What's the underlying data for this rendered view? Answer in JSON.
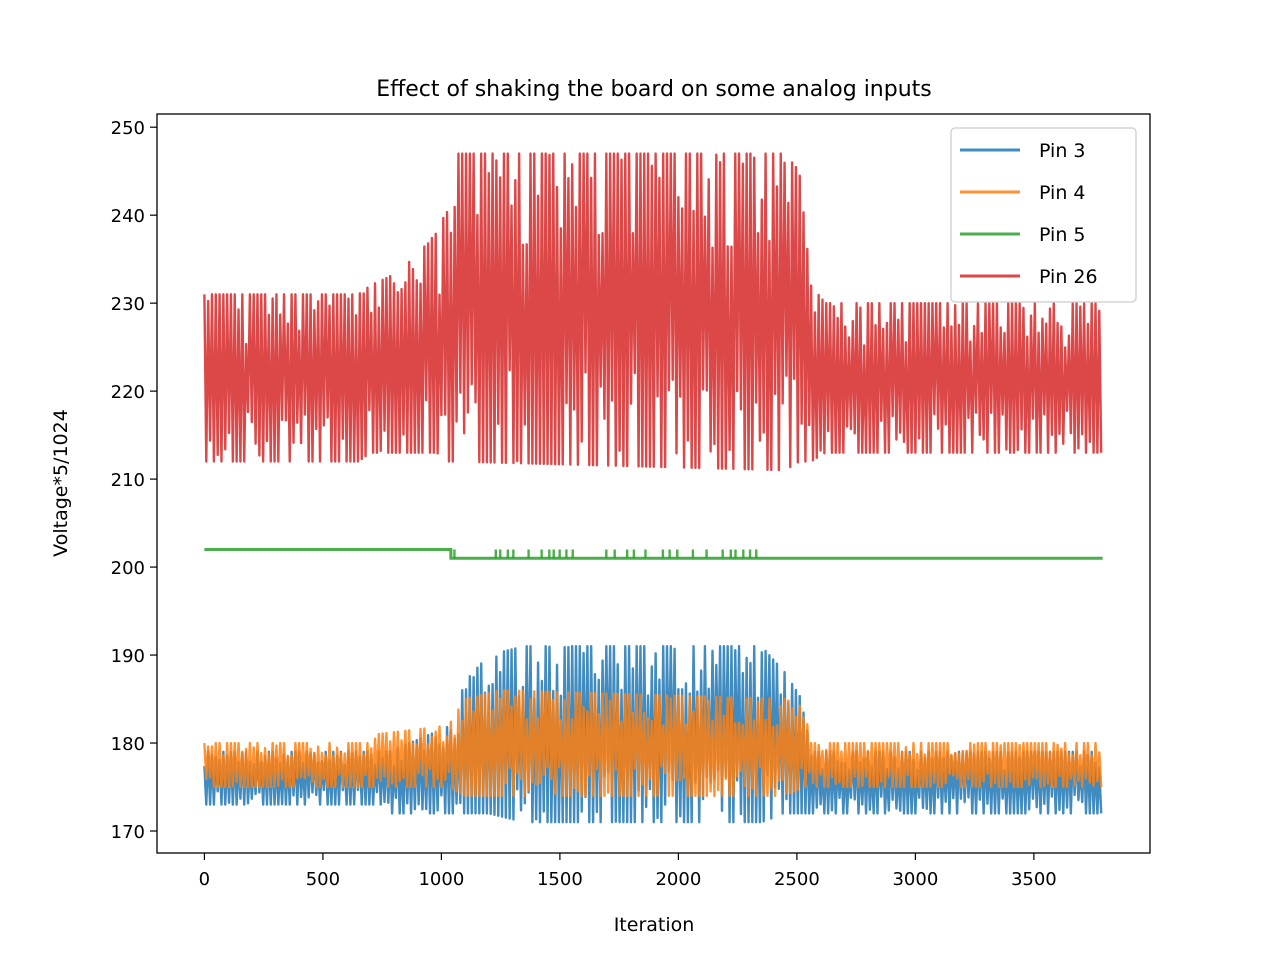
{
  "chart_data": {
    "type": "line",
    "title": "Effect of shaking the board on some analog inputs",
    "xlabel": "Iteration",
    "ylabel": "Voltage*5/1024",
    "xlim": [
      -200,
      3990
    ],
    "ylim": [
      167.5,
      251.5
    ],
    "x_ticks": [
      0,
      500,
      1000,
      1500,
      2000,
      2500,
      3000,
      3500
    ],
    "y_ticks": [
      170,
      180,
      190,
      200,
      210,
      220,
      230,
      240,
      250
    ],
    "x_tick_labels": [
      "0",
      "500",
      "1000",
      "1500",
      "2000",
      "2500",
      "3000",
      "3500"
    ],
    "y_tick_labels": [
      "170",
      "180",
      "190",
      "200",
      "210",
      "220",
      "230",
      "240",
      "250"
    ],
    "grid": false,
    "legend_position": "top-right",
    "series": [
      {
        "name": "Pin 3",
        "color": "#1f77b4",
        "description": "oscillating band; about 173-179 at rest, widening to about 171-191 while shaken",
        "envelope": [
          {
            "x": 0,
            "low": 173,
            "high": 179
          },
          {
            "x": 750,
            "low": 173,
            "high": 179
          },
          {
            "x": 780,
            "low": 172,
            "high": 179
          },
          {
            "x": 1040,
            "low": 172,
            "high": 182
          },
          {
            "x": 1100,
            "low": 172,
            "high": 187
          },
          {
            "x": 1200,
            "low": 172,
            "high": 190
          },
          {
            "x": 1350,
            "low": 171,
            "high": 191
          },
          {
            "x": 2350,
            "low": 171,
            "high": 191
          },
          {
            "x": 2450,
            "low": 172,
            "high": 188
          },
          {
            "x": 2520,
            "low": 172,
            "high": 185
          },
          {
            "x": 2560,
            "low": 172,
            "high": 179
          },
          {
            "x": 3790,
            "low": 172,
            "high": 179
          }
        ]
      },
      {
        "name": "Pin 4",
        "color": "#ff7f0e",
        "description": "oscillating band; about 175-180 at rest, rising to about 174-186 while shaken",
        "envelope": [
          {
            "x": 0,
            "low": 175,
            "high": 180
          },
          {
            "x": 700,
            "low": 175,
            "high": 180
          },
          {
            "x": 730,
            "low": 175,
            "high": 181
          },
          {
            "x": 1030,
            "low": 175,
            "high": 182
          },
          {
            "x": 1100,
            "low": 174,
            "high": 185
          },
          {
            "x": 1250,
            "low": 174,
            "high": 186
          },
          {
            "x": 2450,
            "low": 174,
            "high": 185
          },
          {
            "x": 2530,
            "low": 175,
            "high": 184
          },
          {
            "x": 2560,
            "low": 175,
            "high": 180
          },
          {
            "x": 3790,
            "low": 175,
            "high": 180
          }
        ]
      },
      {
        "name": "Pin 5",
        "color": "#2ca02c",
        "description": "near constant; 202 before shaking, 201 afterwards with brief flickers back to 202",
        "points": [
          {
            "x": 0,
            "y": 202
          },
          {
            "x": 1040,
            "y": 202
          },
          {
            "x": 1040,
            "y": 201
          },
          {
            "x": 3790,
            "y": 201
          }
        ],
        "flicker_value": 202,
        "flicker_range": [
          1040,
          2330
        ]
      },
      {
        "name": "Pin 26",
        "color": "#d62728",
        "description": "oscillating band; about 212-231 at rest, rising to about 211-247 while shaken",
        "envelope": [
          {
            "x": 0,
            "low": 212,
            "high": 231
          },
          {
            "x": 650,
            "low": 212,
            "high": 231
          },
          {
            "x": 700,
            "low": 213,
            "high": 232
          },
          {
            "x": 780,
            "low": 213,
            "high": 233
          },
          {
            "x": 880,
            "low": 213,
            "high": 235
          },
          {
            "x": 980,
            "low": 213,
            "high": 238
          },
          {
            "x": 1030,
            "low": 212,
            "high": 241
          },
          {
            "x": 1060,
            "low": 212,
            "high": 247
          },
          {
            "x": 2450,
            "low": 211,
            "high": 247
          },
          {
            "x": 2510,
            "low": 212,
            "high": 245
          },
          {
            "x": 2560,
            "low": 212,
            "high": 232
          },
          {
            "x": 2620,
            "low": 213,
            "high": 230
          },
          {
            "x": 3790,
            "low": 213,
            "high": 230
          }
        ]
      }
    ]
  }
}
